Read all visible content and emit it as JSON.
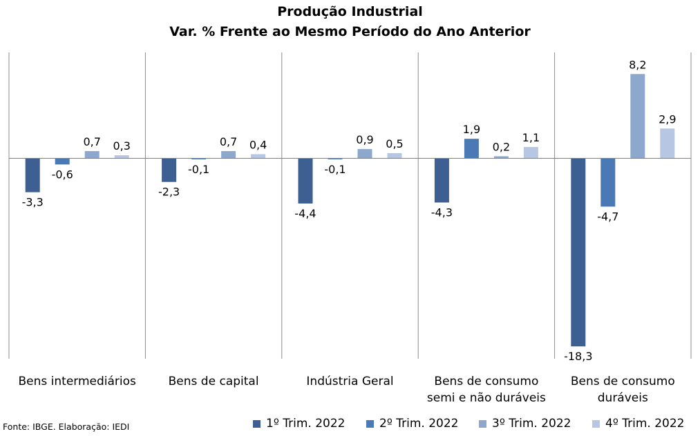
{
  "chart_data": {
    "type": "bar",
    "title": "Produção Industrial",
    "subtitle": "Var. %  Frente ao Mesmo Período do Ano Anterior",
    "categories": [
      [
        "Bens intermediários"
      ],
      [
        "Bens de capital"
      ],
      [
        "Indústria Geral"
      ],
      [
        "Bens de consumo",
        "semi e não duráveis"
      ],
      [
        "Bens de consumo",
        "duráveis"
      ]
    ],
    "series": [
      {
        "name": "1º Trim. 2022",
        "color": "#3d5f92",
        "values": [
          -3.3,
          -2.3,
          -4.4,
          -4.3,
          -18.3
        ]
      },
      {
        "name": "2º Trim. 2022",
        "color": "#4a79b5",
        "values": [
          -0.6,
          -0.1,
          -0.1,
          1.9,
          -4.7
        ]
      },
      {
        "name": "3º Trim. 2022",
        "color": "#8ea7cd",
        "values": [
          0.7,
          0.7,
          0.9,
          0.2,
          8.2
        ]
      },
      {
        "name": "4º Trim. 2022",
        "color": "#b7c6e2",
        "values": [
          0.3,
          0.4,
          0.5,
          1.1,
          2.9
        ]
      }
    ],
    "ylim": [
      -19.5,
      10.3
    ],
    "grid": false,
    "legend_position": "bottom-right",
    "decimal_separator": ","
  },
  "source": "Fonte: IBGE. Elaboração: IEDI"
}
